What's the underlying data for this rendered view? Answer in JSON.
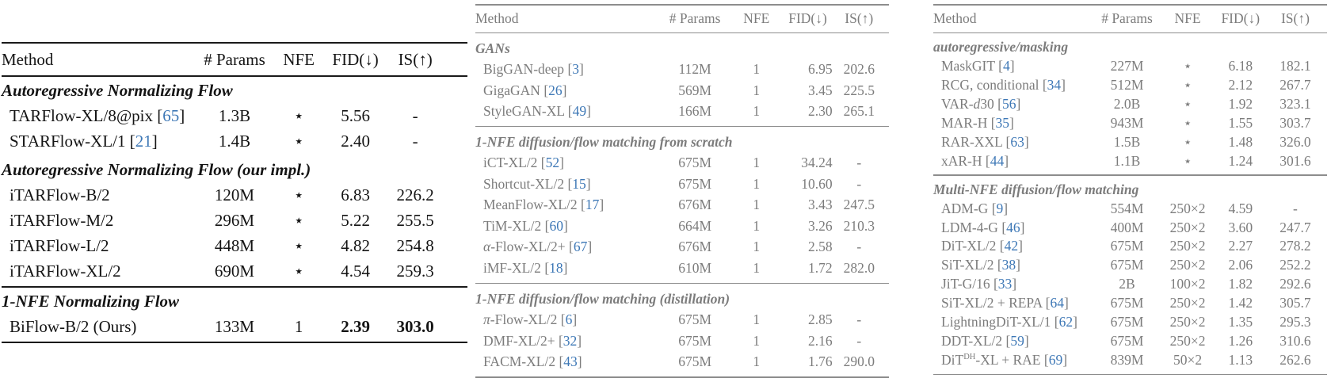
{
  "colors": {
    "text_black": "#141414",
    "text_gray": "#7c7c7c",
    "rule_black": "#1a1a1a",
    "rule_gray": "#8d8d8d",
    "citation_blue": "#3e78b6",
    "background": "#ffffff"
  },
  "tables": [
    {
      "id": "normalizing-flow-results",
      "header": {
        "method": "Method",
        "params": "# Params",
        "nfe": "NFE",
        "fid": "FID(↓)",
        "is": "IS(↑)"
      },
      "sections": [
        {
          "title": "Autoregressive Normalizing Flow",
          "rule_before": false,
          "rows": [
            {
              "method": "TARFlow-XL/8@pix",
              "cite": "65",
              "params": "1.3B",
              "nfe": "⋆",
              "fid": "5.56",
              "is": "-"
            },
            {
              "method": "STARFlow-XL/1",
              "cite": "21",
              "params": "1.4B",
              "nfe": "⋆",
              "fid": "2.40",
              "is": "-"
            }
          ]
        },
        {
          "title": "Autoregressive Normalizing Flow (our impl.)",
          "rule_before": false,
          "rows": [
            {
              "method": "iTARFlow-B/2",
              "params": "120M",
              "nfe": "⋆",
              "fid": "6.83",
              "is": "226.2"
            },
            {
              "method": "iTARFlow-M/2",
              "params": "296M",
              "nfe": "⋆",
              "fid": "5.22",
              "is": "255.5"
            },
            {
              "method": "iTARFlow-L/2",
              "params": "448M",
              "nfe": "⋆",
              "fid": "4.82",
              "is": "254.8"
            },
            {
              "method": "iTARFlow-XL/2",
              "params": "690M",
              "nfe": "⋆",
              "fid": "4.54",
              "is": "259.3"
            }
          ]
        },
        {
          "title": "1-NFE Normalizing Flow",
          "rule_before": true,
          "rows": [
            {
              "method": "BiFlow-B/2 (Ours)",
              "params": "133M",
              "nfe": "1",
              "fid": "2.39",
              "is": "303.0",
              "bold": [
                "fid",
                "is"
              ]
            }
          ]
        }
      ]
    },
    {
      "id": "gan-and-1nfe-diffusion-results",
      "header": {
        "method": "Method",
        "params": "# Params",
        "nfe": "NFE",
        "fid": "FID(↓)",
        "is": "IS(↑)"
      },
      "sections": [
        {
          "title": "GANs",
          "rule_before": false,
          "rows": [
            {
              "method": "BigGAN-deep",
              "cite": "3",
              "params": "112M",
              "nfe": "1",
              "fid": "6.95",
              "is": "202.6"
            },
            {
              "method": "GigaGAN",
              "cite": "26",
              "params": "569M",
              "nfe": "1",
              "fid": "3.45",
              "is": "225.5"
            },
            {
              "method": "StyleGAN-XL",
              "cite": "49",
              "params": "166M",
              "nfe": "1",
              "fid": "2.30",
              "is": "265.1"
            }
          ]
        },
        {
          "title": "1-NFE diffusion/flow matching from scratch",
          "rule_before": true,
          "rows": [
            {
              "method": "iCT-XL/2",
              "cite": "52",
              "params": "675M",
              "nfe": "1",
              "fid": "34.24",
              "is": "-"
            },
            {
              "method": "Shortcut-XL/2",
              "cite": "15",
              "params": "675M",
              "nfe": "1",
              "fid": "10.60",
              "is": "-"
            },
            {
              "method": "MeanFlow-XL/2",
              "cite": "17",
              "params": "676M",
              "nfe": "1",
              "fid": "3.43",
              "is": "247.5"
            },
            {
              "method": "TiM-XL/2",
              "cite": "60",
              "params": "664M",
              "nfe": "1",
              "fid": "3.26",
              "is": "210.3"
            },
            {
              "method": "<i>α</i>-Flow-XL/2+",
              "html": true,
              "cite": "67",
              "params": "676M",
              "nfe": "1",
              "fid": "2.58",
              "is": "-"
            },
            {
              "method": "iMF-XL/2",
              "cite": "18",
              "params": "610M",
              "nfe": "1",
              "fid": "1.72",
              "is": "282.0"
            }
          ]
        },
        {
          "title": "1-NFE diffusion/flow matching (distillation)",
          "rule_before": true,
          "rows": [
            {
              "method": "<i>π</i>-Flow-XL/2",
              "html": true,
              "cite": "6",
              "params": "675M",
              "nfe": "1",
              "fid": "2.85",
              "is": "-"
            },
            {
              "method": "DMF-XL/2+",
              "cite": "32",
              "params": "675M",
              "nfe": "1",
              "fid": "2.16",
              "is": "-"
            },
            {
              "method": "FACM-XL/2",
              "cite": "43",
              "params": "675M",
              "nfe": "1",
              "fid": "1.76",
              "is": "290.0"
            }
          ]
        }
      ]
    },
    {
      "id": "autoregressive-and-multinfe-diffusion-results",
      "header": {
        "method": "Method",
        "params": "# Params",
        "nfe": "NFE",
        "fid": "FID(↓)",
        "is": "IS(↑)"
      },
      "sections": [
        {
          "title": "autoregressive/masking",
          "rule_before": false,
          "rows": [
            {
              "method": "MaskGIT",
              "cite": "4",
              "params": "227M",
              "nfe": "⋆",
              "fid": "6.18",
              "is": "182.1"
            },
            {
              "method": "RCG, conditional",
              "cite": "34",
              "params": "512M",
              "nfe": "⋆",
              "fid": "2.12",
              "is": "267.7"
            },
            {
              "method": "VAR-<i>d</i>30",
              "html": true,
              "cite": "56",
              "params": "2.0B",
              "nfe": "⋆",
              "fid": "1.92",
              "is": "323.1"
            },
            {
              "method": "MAR-H",
              "cite": "35",
              "params": "943M",
              "nfe": "⋆",
              "fid": "1.55",
              "is": "303.7"
            },
            {
              "method": "RAR-XXL",
              "cite": "63",
              "params": "1.5B",
              "nfe": "⋆",
              "fid": "1.48",
              "is": "326.0"
            },
            {
              "method": "xAR-H",
              "cite": "44",
              "params": "1.1B",
              "nfe": "⋆",
              "fid": "1.24",
              "is": "301.6"
            }
          ]
        },
        {
          "title": "Multi-NFE diffusion/flow matching",
          "rule_before": true,
          "rows": [
            {
              "method": "ADM-G",
              "cite": "9",
              "params": "554M",
              "nfe": "250×2",
              "fid": "4.59",
              "is": "-"
            },
            {
              "method": "LDM-4-G",
              "cite": "46",
              "params": "400M",
              "nfe": "250×2",
              "fid": "3.60",
              "is": "247.7"
            },
            {
              "method": "DiT-XL/2",
              "cite": "42",
              "params": "675M",
              "nfe": "250×2",
              "fid": "2.27",
              "is": "278.2"
            },
            {
              "method": "SiT-XL/2",
              "cite": "38",
              "params": "675M",
              "nfe": "250×2",
              "fid": "2.06",
              "is": "252.2"
            },
            {
              "method": "JiT-G/16",
              "cite": "33",
              "params": "2B",
              "nfe": "100×2",
              "fid": "1.82",
              "is": "292.6"
            },
            {
              "method": "SiT-XL/2 + REPA",
              "cite": "64",
              "params": "675M",
              "nfe": "250×2",
              "fid": "1.42",
              "is": "305.7"
            },
            {
              "method": "LightningDiT-XL/1",
              "cite": "62",
              "params": "675M",
              "nfe": "250×2",
              "fid": "1.35",
              "is": "295.3"
            },
            {
              "method": "DDT-XL/2",
              "cite": "59",
              "params": "675M",
              "nfe": "250×2",
              "fid": "1.26",
              "is": "310.6"
            },
            {
              "method": "DiT<sup>DH</sup>-XL + RAE",
              "html": true,
              "cite": "69",
              "params": "839M",
              "nfe": "50×2",
              "fid": "1.13",
              "is": "262.6"
            }
          ]
        }
      ]
    }
  ]
}
